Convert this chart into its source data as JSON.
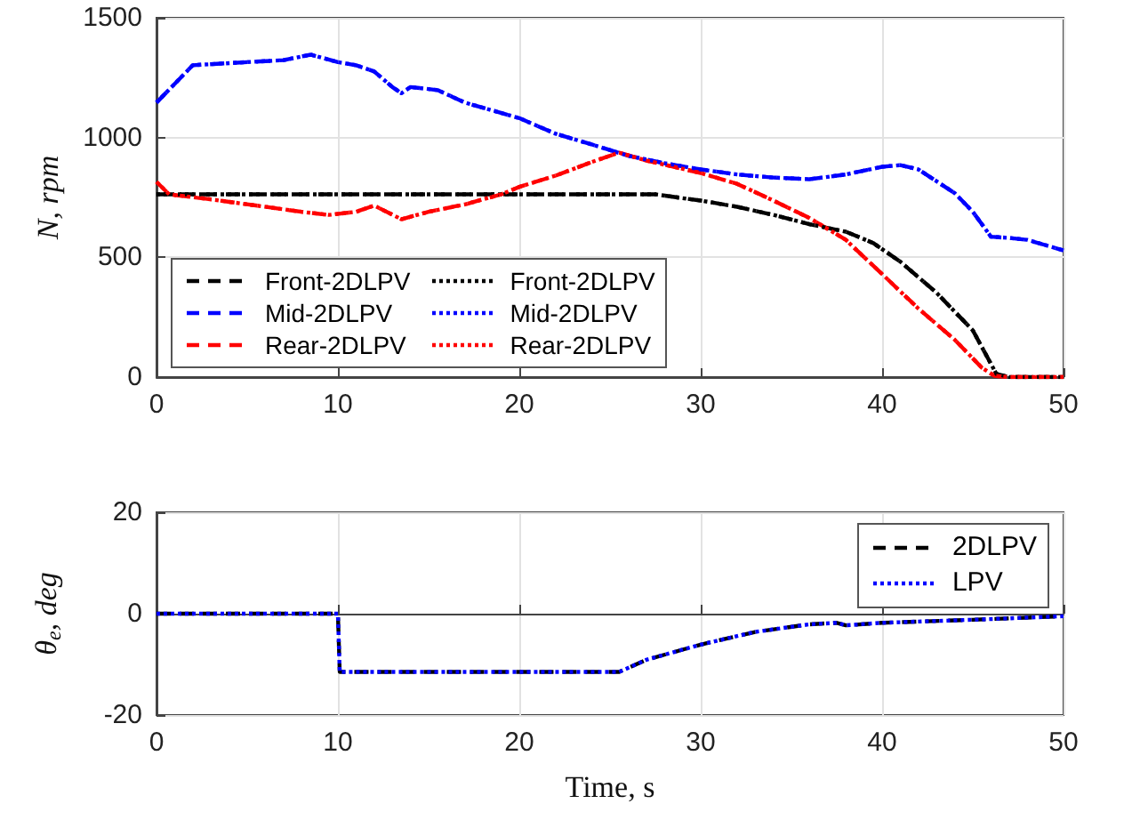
{
  "chart_data": [
    {
      "type": "line",
      "ylabel": "N, rpm",
      "xlim": [
        0,
        50
      ],
      "xticks": [
        0,
        10,
        20,
        30,
        40,
        50
      ],
      "ylim": [
        0,
        1500
      ],
      "yticks": [
        0,
        500,
        1000,
        1500
      ],
      "grid": true,
      "legend": "bottom left",
      "marker": "none",
      "series": [
        {
          "name": "Front-2DLPV",
          "color": "#000000",
          "line_style": "dashed",
          "x": [
            0,
            5,
            10,
            15,
            20,
            25,
            27.5,
            29,
            30,
            32,
            34,
            36,
            38,
            39.5,
            41,
            43,
            45,
            46.3,
            47,
            50
          ],
          "values": [
            763,
            763,
            763,
            763,
            763,
            763,
            763,
            747,
            737,
            711,
            677,
            638,
            607,
            560,
            482,
            352,
            195,
            13,
            0,
            0
          ]
        },
        {
          "name": "Mid-2DLPV",
          "color": "#0000ff",
          "line_style": "dashed",
          "x": [
            0,
            2,
            5,
            7,
            8.5,
            10,
            11,
            12,
            13,
            13.5,
            14,
            15.5,
            17,
            20,
            22,
            24,
            26,
            28,
            30,
            32,
            34,
            36,
            38,
            40,
            41,
            42,
            44,
            45,
            46,
            47,
            48,
            50
          ],
          "values": [
            1146,
            1302,
            1315,
            1323,
            1346,
            1315,
            1302,
            1276,
            1211,
            1185,
            1211,
            1198,
            1146,
            1081,
            1016,
            971,
            924,
            893,
            867,
            846,
            833,
            826,
            846,
            878,
            885,
            867,
            768,
            690,
            586,
            581,
            573,
            529
          ]
        },
        {
          "name": "Rear-2DLPV",
          "color": "#ff0000",
          "line_style": "dashed",
          "x": [
            0,
            0.7,
            3,
            6,
            8,
            9.5,
            11,
            12,
            13.5,
            15,
            17,
            19,
            20,
            22,
            24,
            25.5,
            27,
            30,
            32,
            34,
            36,
            38,
            40,
            42,
            44,
            45.5,
            46.2,
            47,
            50
          ],
          "values": [
            815,
            763,
            742,
            711,
            690,
            677,
            690,
            716,
            659,
            690,
            721,
            763,
            794,
            841,
            898,
            937,
            904,
            852,
            807,
            737,
            664,
            573,
            430,
            286,
            156,
            39,
            5,
            0,
            0
          ]
        },
        {
          "name": "Front-2DLPV",
          "color": "#000000",
          "line_style": "dotted",
          "x": [
            0,
            5,
            10,
            15,
            20,
            25,
            27.5,
            29,
            30,
            32,
            34,
            36,
            38,
            39.5,
            41,
            43,
            45,
            46.3,
            47,
            50
          ],
          "values": [
            763,
            763,
            763,
            763,
            763,
            763,
            763,
            747,
            737,
            711,
            677,
            638,
            607,
            560,
            482,
            352,
            195,
            13,
            0,
            0
          ]
        },
        {
          "name": "Mid-2DLPV",
          "color": "#0000ff",
          "line_style": "dotted",
          "x": [
            0,
            2,
            5,
            7,
            8.5,
            10,
            11,
            12,
            13,
            13.5,
            14,
            15.5,
            17,
            20,
            22,
            24,
            26,
            28,
            30,
            32,
            34,
            36,
            38,
            40,
            41,
            42,
            44,
            45,
            46,
            47,
            48,
            50
          ],
          "values": [
            1146,
            1302,
            1315,
            1323,
            1346,
            1315,
            1302,
            1276,
            1211,
            1185,
            1211,
            1198,
            1146,
            1081,
            1016,
            971,
            924,
            893,
            867,
            846,
            833,
            826,
            846,
            878,
            885,
            867,
            768,
            690,
            586,
            581,
            573,
            529
          ]
        },
        {
          "name": "Rear-2DLPV",
          "color": "#ff0000",
          "line_style": "dotted",
          "x": [
            0,
            0.7,
            3,
            6,
            8,
            9.5,
            11,
            12,
            13.5,
            15,
            17,
            19,
            20,
            22,
            24,
            25.5,
            27,
            30,
            32,
            34,
            36,
            38,
            40,
            42,
            44,
            45.5,
            46.2,
            47,
            50
          ],
          "values": [
            815,
            763,
            742,
            711,
            690,
            677,
            690,
            716,
            659,
            690,
            721,
            763,
            794,
            841,
            898,
            937,
            904,
            852,
            807,
            737,
            664,
            573,
            430,
            286,
            156,
            39,
            5,
            0,
            0
          ]
        }
      ]
    },
    {
      "type": "line",
      "xlabel": "Time, s",
      "ylabel": "θ$_{e}$, deg",
      "xlim": [
        0,
        50
      ],
      "xticks": [
        0,
        10,
        20,
        30,
        40,
        50
      ],
      "ylim": [
        -20,
        20
      ],
      "yticks": [
        -20,
        0,
        20
      ],
      "grid": true,
      "legend": "top right",
      "marker": "none",
      "series": [
        {
          "name": "2DLPV",
          "color": "#000000",
          "line_style": "dashed",
          "x": [
            0,
            10,
            10.1,
            25.5,
            27,
            30,
            33,
            36,
            37.5,
            38,
            40,
            45,
            50
          ],
          "values": [
            0,
            0,
            -11.5,
            -11.5,
            -9.1,
            -6.1,
            -3.6,
            -2.1,
            -1.8,
            -2.3,
            -1.8,
            -1.2,
            -0.5
          ]
        },
        {
          "name": "LPV",
          "color": "#0000ff",
          "line_style": "dotted",
          "x": [
            0,
            10,
            10.1,
            25.5,
            27,
            30,
            33,
            36,
            37.5,
            38,
            40,
            45,
            50
          ],
          "values": [
            0,
            0,
            -11.5,
            -11.5,
            -9.1,
            -6.1,
            -3.6,
            -2.1,
            -1.8,
            -2.3,
            -1.8,
            -1.2,
            -0.5
          ]
        }
      ]
    }
  ]
}
